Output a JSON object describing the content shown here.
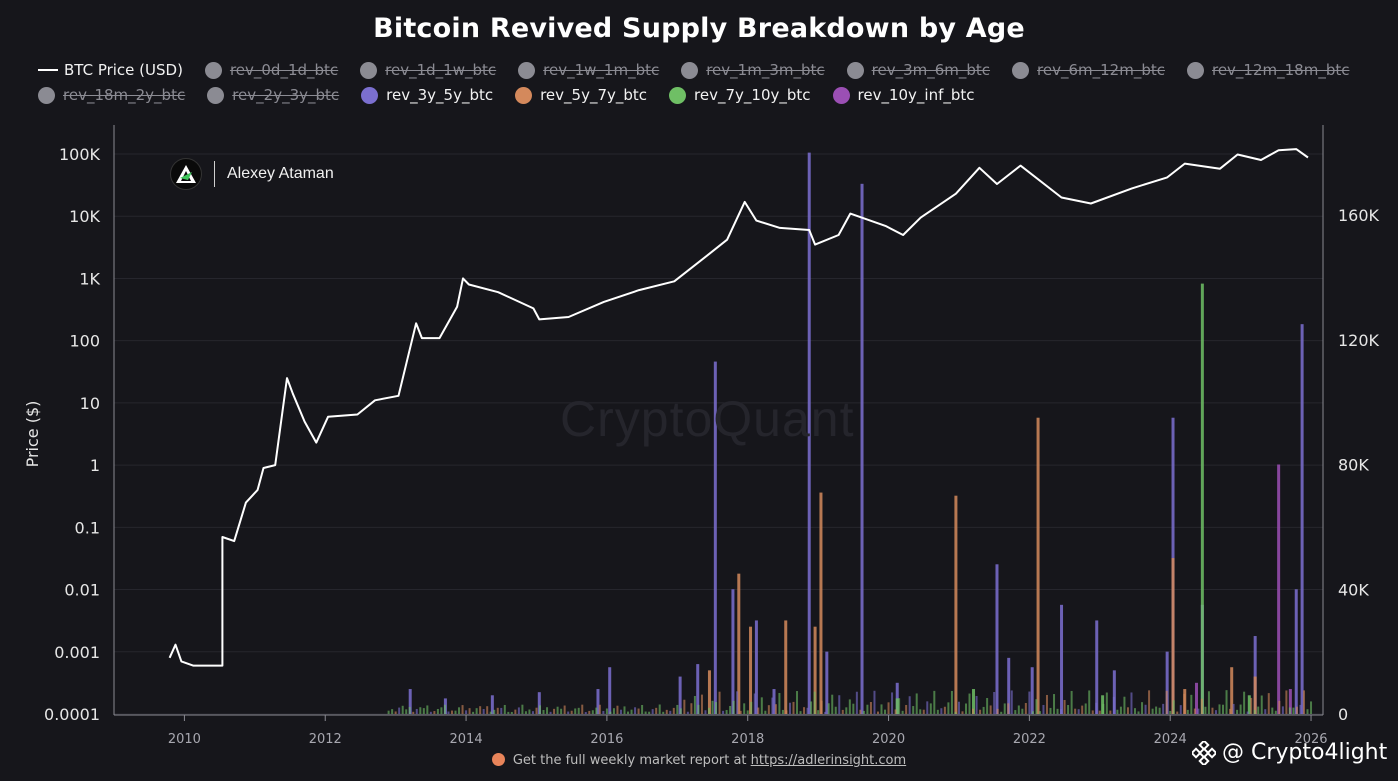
{
  "header": {
    "title": "Bitcoin Revived Supply Breakdown by Age"
  },
  "legend": {
    "items": [
      {
        "label": "BTC Price (USD)",
        "kind": "line",
        "color": "#ffffff",
        "active": true
      },
      {
        "label": "rev_0d_1d_btc",
        "kind": "dot",
        "color": "#8b8b93",
        "active": false
      },
      {
        "label": "rev_1d_1w_btc",
        "kind": "dot",
        "color": "#8b8b93",
        "active": false
      },
      {
        "label": "rev_1w_1m_btc",
        "kind": "dot",
        "color": "#8b8b93",
        "active": false
      },
      {
        "label": "rev_1m_3m_btc",
        "kind": "dot",
        "color": "#8b8b93",
        "active": false
      },
      {
        "label": "rev_3m_6m_btc",
        "kind": "dot",
        "color": "#8b8b93",
        "active": false
      },
      {
        "label": "rev_6m_12m_btc",
        "kind": "dot",
        "color": "#8b8b93",
        "active": false
      },
      {
        "label": "rev_12m_18m_btc",
        "kind": "dot",
        "color": "#8b8b93",
        "active": false
      },
      {
        "label": "rev_18m_2y_btc",
        "kind": "dot",
        "color": "#8b8b93",
        "active": false
      },
      {
        "label": "rev_2y_3y_btc",
        "kind": "dot",
        "color": "#8b8b93",
        "active": false
      },
      {
        "label": "rev_3y_5y_btc",
        "kind": "dot",
        "color": "#7b6fd0",
        "active": true
      },
      {
        "label": "rev_5y_7y_btc",
        "kind": "dot",
        "color": "#d4895c",
        "active": true
      },
      {
        "label": "rev_7y_10y_btc",
        "kind": "dot",
        "color": "#6fbf65",
        "active": true
      },
      {
        "label": "rev_10y_inf_btc",
        "kind": "dot",
        "color": "#9b4fb4",
        "active": true
      }
    ]
  },
  "brand": {
    "name": "Alexey Ataman",
    "logo_icon": "triangle-a-logo"
  },
  "watermark": "CryptoQuant",
  "footer": {
    "text": "Get the full weekly market report at",
    "link": "https://adlerinsight.com"
  },
  "credit": {
    "text": "@ Crypto4light",
    "icon": "binance-logo-icon"
  },
  "chart_data": {
    "type": "line",
    "title": "Bitcoin Revived Supply Breakdown by Age",
    "xlabel": "",
    "ylabel": "Price ($)",
    "x_ticks": [
      "2010",
      "2012",
      "2014",
      "2016",
      "2018",
      "2020",
      "2022",
      "2024",
      "2026"
    ],
    "y_left_ticks": [
      "0.0001",
      "0.001",
      "0.01",
      "0.1",
      "1",
      "10",
      "100",
      "1K",
      "10K",
      "100K"
    ],
    "y_left_scale": "log",
    "y_left_range": [
      0.0001,
      100000
    ],
    "y_right_ticks": [
      "0",
      "40K",
      "80K",
      "120K",
      "160K"
    ],
    "y_right_range": [
      0,
      160000
    ],
    "grid": "horizontal",
    "price_series": {
      "name": "BTC Price (USD)",
      "color": "#ffffff",
      "points": [
        [
          "2009-10",
          0.0008
        ],
        [
          "2009-11",
          0.0013
        ],
        [
          "2009-12",
          0.0007
        ],
        [
          "2010-02",
          0.0006
        ],
        [
          "2010-07",
          0.0006
        ],
        [
          "2010-07",
          0.07
        ],
        [
          "2010-09",
          0.06
        ],
        [
          "2010-11",
          0.25
        ],
        [
          "2011-01",
          0.4
        ],
        [
          "2011-02",
          0.9
        ],
        [
          "2011-04",
          1.0
        ],
        [
          "2011-06",
          25
        ],
        [
          "2011-07",
          14
        ],
        [
          "2011-09",
          5
        ],
        [
          "2011-11",
          2.3
        ],
        [
          "2012-01",
          6
        ],
        [
          "2012-06",
          6.5
        ],
        [
          "2012-09",
          11
        ],
        [
          "2013-01",
          13
        ],
        [
          "2013-04",
          190
        ],
        [
          "2013-05",
          110
        ],
        [
          "2013-08",
          110
        ],
        [
          "2013-11",
          350
        ],
        [
          "2013-12",
          1000
        ],
        [
          "2014-01",
          800
        ],
        [
          "2014-06",
          600
        ],
        [
          "2014-12",
          330
        ],
        [
          "2015-01",
          220
        ],
        [
          "2015-06",
          240
        ],
        [
          "2015-12",
          420
        ],
        [
          "2016-06",
          650
        ],
        [
          "2016-12",
          900
        ],
        [
          "2017-06",
          2500
        ],
        [
          "2017-09",
          4200
        ],
        [
          "2017-12",
          17000
        ],
        [
          "2018-02",
          8500
        ],
        [
          "2018-06",
          6500
        ],
        [
          "2018-11",
          6000
        ],
        [
          "2018-12",
          3500
        ],
        [
          "2019-04",
          5000
        ],
        [
          "2019-06",
          11000
        ],
        [
          "2019-12",
          7000
        ],
        [
          "2020-03",
          5000
        ],
        [
          "2020-06",
          9500
        ],
        [
          "2020-12",
          23000
        ],
        [
          "2021-04",
          60000
        ],
        [
          "2021-07",
          33000
        ],
        [
          "2021-11",
          65000
        ],
        [
          "2022-06",
          20000
        ],
        [
          "2022-11",
          16000
        ],
        [
          "2023-06",
          28000
        ],
        [
          "2023-12",
          42000
        ],
        [
          "2024-03",
          70000
        ],
        [
          "2024-09",
          58000
        ],
        [
          "2024-12",
          98000
        ],
        [
          "2025-04",
          80000
        ],
        [
          "2025-07",
          115000
        ],
        [
          "2025-10",
          120000
        ],
        [
          "2025-12",
          88000
        ]
      ]
    },
    "bar_series": [
      {
        "name": "rev_3y_5y_btc",
        "color": "#7b6fd0",
        "spikes": [
          [
            "2013-03",
            8000
          ],
          [
            "2013-09",
            5000
          ],
          [
            "2014-05",
            6000
          ],
          [
            "2015-01",
            7000
          ],
          [
            "2015-11",
            8000
          ],
          [
            "2016-01",
            15000
          ],
          [
            "2017-01",
            12000
          ],
          [
            "2017-04",
            16000
          ],
          [
            "2017-07",
            113000
          ],
          [
            "2017-10",
            40000
          ],
          [
            "2018-02",
            30000
          ],
          [
            "2018-05",
            8000
          ],
          [
            "2018-11",
            180000
          ],
          [
            "2019-02",
            20000
          ],
          [
            "2019-08",
            170000
          ],
          [
            "2020-02",
            10000
          ],
          [
            "2021-07",
            48000
          ],
          [
            "2021-09",
            18000
          ],
          [
            "2022-01",
            15000
          ],
          [
            "2022-06",
            35000
          ],
          [
            "2022-12",
            30000
          ],
          [
            "2023-03",
            14000
          ],
          [
            "2023-12",
            20000
          ],
          [
            "2024-01",
            95000
          ],
          [
            "2024-06",
            35000
          ],
          [
            "2025-03",
            25000
          ],
          [
            "2025-10",
            40000
          ],
          [
            "2025-11",
            125000
          ]
        ]
      },
      {
        "name": "rev_5y_7y_btc",
        "color": "#d4895c",
        "spikes": [
          [
            "2017-06",
            14000
          ],
          [
            "2017-11",
            45000
          ],
          [
            "2018-01",
            28000
          ],
          [
            "2018-07",
            30000
          ],
          [
            "2018-12",
            28000
          ],
          [
            "2019-01",
            71000
          ],
          [
            "2020-12",
            70000
          ],
          [
            "2022-02",
            95000
          ],
          [
            "2024-01",
            50000
          ],
          [
            "2024-03",
            8000
          ],
          [
            "2024-11",
            15000
          ],
          [
            "2025-03",
            12000
          ]
        ]
      },
      {
        "name": "rev_7y_10y_btc",
        "color": "#6fbf65",
        "spikes": [
          [
            "2020-02",
            5000
          ],
          [
            "2021-03",
            8000
          ],
          [
            "2023-01",
            6000
          ],
          [
            "2024-06",
            138000
          ],
          [
            "2025-02",
            6000
          ]
        ]
      },
      {
        "name": "rev_10y_inf_btc",
        "color": "#9b4fb4",
        "spikes": [
          [
            "2024-05",
            10000
          ],
          [
            "2025-07",
            80000
          ],
          [
            "2025-09",
            8000
          ]
        ]
      }
    ]
  }
}
